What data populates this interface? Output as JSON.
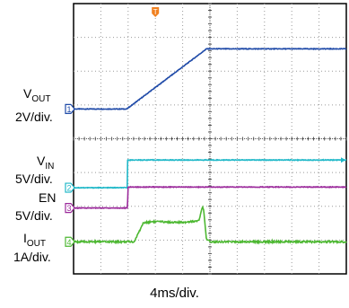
{
  "chart_data": {
    "type": "line",
    "description_units": "x in ms, y in divisions on scope grid",
    "timebase": "4ms/div.",
    "trigger_marker": "T",
    "x_range_ms": [
      -12,
      28
    ],
    "divisions": {
      "x": 10,
      "y": 8
    },
    "colors": {
      "grid": "#9a9a9a",
      "frame": "#000000",
      "background": "#ffffff",
      "vout": "#1f4aa8",
      "vin": "#20b8c8",
      "en": "#9b2a9b",
      "iout": "#4db832",
      "trigger": "#f08020"
    },
    "series": [
      {
        "key": "vout",
        "scale_text": "2V/div.",
        "channel": "1",
        "ground_div": 4.88,
        "points_ms_div": [
          [
            -12,
            0
          ],
          [
            -4.2,
            0
          ],
          [
            7.5,
            1.78
          ],
          [
            11.5,
            1.78
          ],
          [
            28,
            1.78
          ]
        ]
      },
      {
        "key": "vin",
        "scale_text": "5V/div.",
        "channel": "2",
        "ground_div": 2.55,
        "points_ms_div": [
          [
            -12,
            0
          ],
          [
            -4.1,
            0
          ],
          [
            -4.1,
            0.82
          ],
          [
            28,
            0.82
          ]
        ]
      },
      {
        "key": "en",
        "scale_text": "5V/div.",
        "channel": "3",
        "ground_div": 1.95,
        "points_ms_div": [
          [
            -12,
            0
          ],
          [
            -4.1,
            0
          ],
          [
            -4.0,
            0.62
          ],
          [
            28,
            0.62
          ]
        ]
      },
      {
        "key": "iout",
        "scale_text": "1A/div.",
        "channel": "4",
        "ground_div": 0.95,
        "points_ms_div": [
          [
            -12,
            0
          ],
          [
            -3.1,
            0
          ],
          [
            -1.8,
            0.55
          ],
          [
            -0.5,
            0.6
          ],
          [
            3.5,
            0.57
          ],
          [
            6.4,
            0.62
          ],
          [
            6.9,
            1.05
          ],
          [
            7.1,
            0.9
          ],
          [
            7.5,
            0.05
          ],
          [
            8.2,
            0
          ],
          [
            28,
            0
          ]
        ]
      }
    ],
    "labels": {
      "vout_main": "V",
      "vout_sub": "OUT",
      "vout_scale": "2V/div.",
      "vin_main": "V",
      "vin_sub": "IN",
      "vin_scale": "5V/div.",
      "en_main": "EN",
      "en_scale": "5V/div.",
      "iout_main": "I",
      "iout_sub": "OUT",
      "iout_scale": "1A/div."
    }
  }
}
